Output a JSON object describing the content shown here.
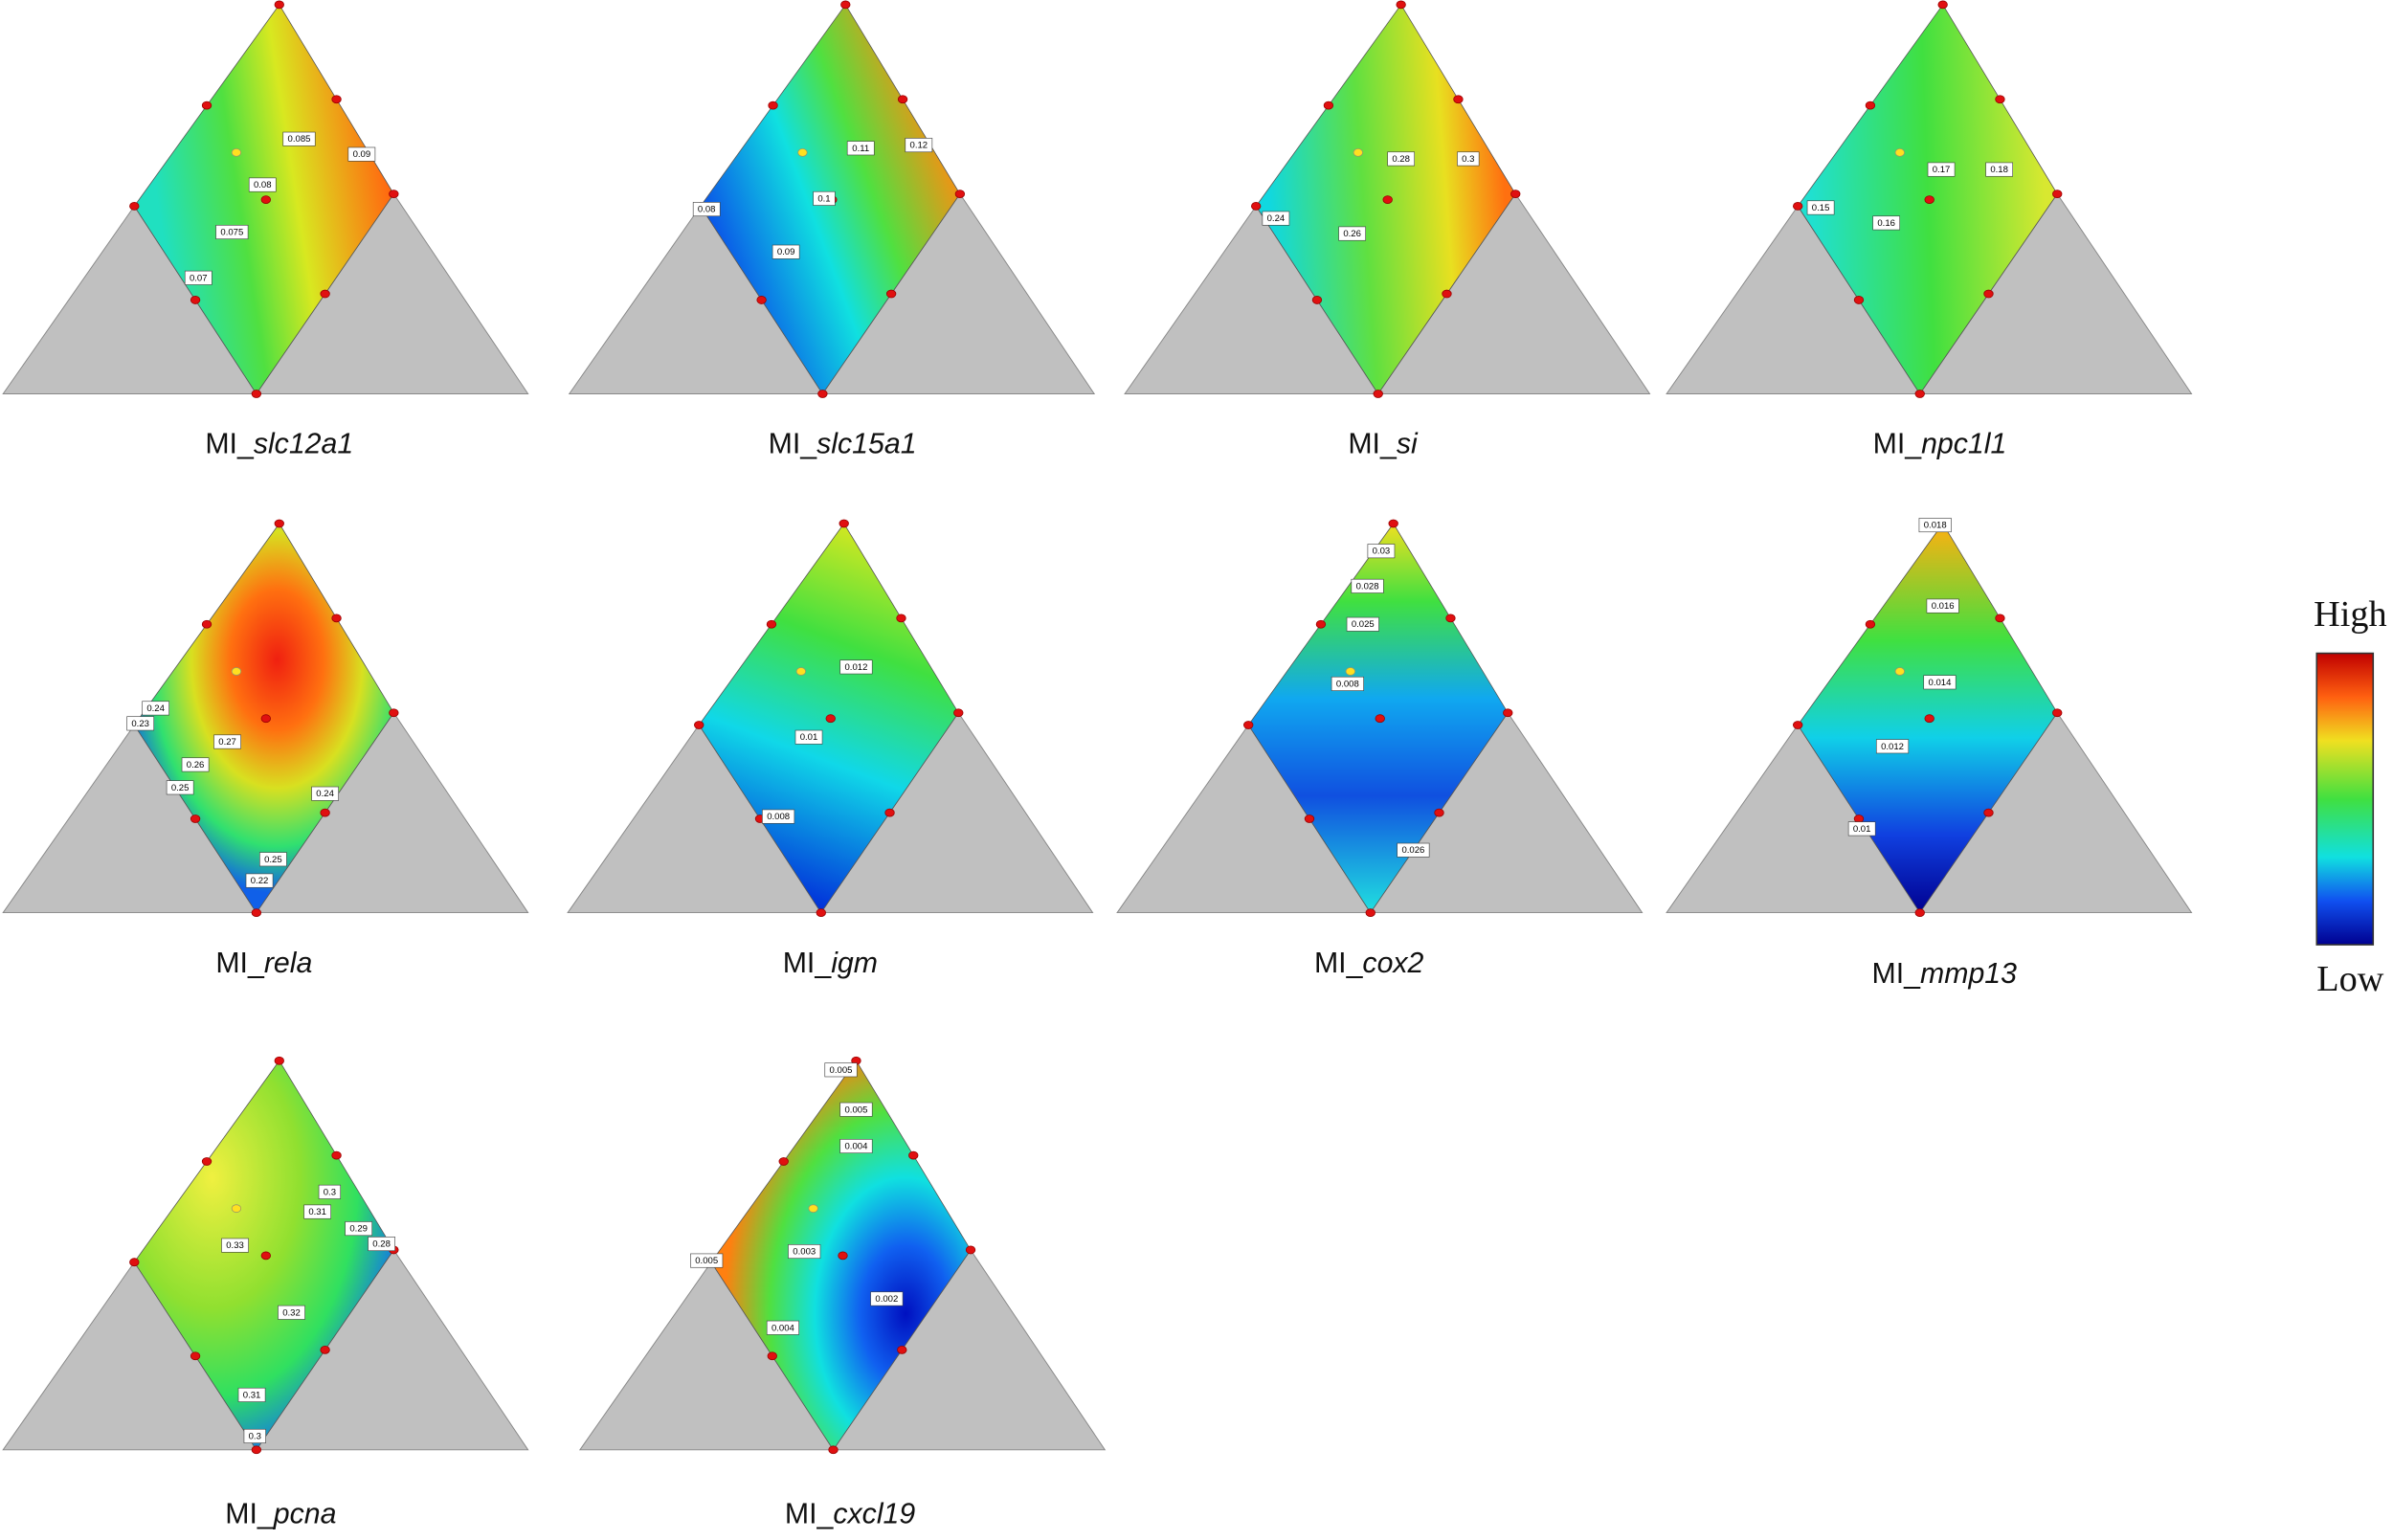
{
  "panels": [
    {
      "prefix": "MI_",
      "gene": "slc12a1",
      "contour_labels": [
        "0.085",
        "0.09",
        "0.08",
        "0.075",
        "0.07"
      ]
    },
    {
      "prefix": "MI_",
      "gene": "slc15a1",
      "contour_labels": [
        "0.11",
        "0.12",
        "0.1",
        "0.08",
        "0.09"
      ]
    },
    {
      "prefix": "MI_",
      "gene": "si",
      "contour_labels": [
        "0.28",
        "0.3",
        "0.24",
        "0.26"
      ]
    },
    {
      "prefix": "MI_",
      "gene": "npc1l1",
      "contour_labels": [
        "0.17",
        "0.18",
        "0.15",
        "0.16"
      ]
    },
    {
      "prefix": "MI_",
      "gene": "rela",
      "contour_labels": [
        "0.24",
        "0.23",
        "0.26",
        "0.27",
        "0.25",
        "0.24",
        "0.25",
        "0.22"
      ]
    },
    {
      "prefix": "MI_",
      "gene": "igm",
      "contour_labels": [
        "0.012",
        "0.01",
        "0.008"
      ]
    },
    {
      "prefix": "MI_",
      "gene": "cox2",
      "contour_labels": [
        "0.03",
        "0.028",
        "0.025",
        "0.008",
        "0.026"
      ]
    },
    {
      "prefix": "MI_",
      "gene": "mmp13",
      "contour_labels": [
        "0.018",
        "0.016",
        "0.014",
        "0.012",
        "0.01"
      ]
    },
    {
      "prefix": "MI_",
      "gene": "pcna",
      "contour_labels": [
        "0.3",
        "0.31",
        "0.29",
        "0.28",
        "0.33",
        "0.32",
        "0.31",
        "0.3"
      ]
    },
    {
      "prefix": "MI_",
      "gene": "cxcl19",
      "contour_labels": [
        "0.005",
        "0.005",
        "0.004",
        "0.005",
        "0.003",
        "0.002",
        "0.004"
      ]
    }
  ],
  "legend": {
    "high": "High",
    "low": "Low"
  }
}
